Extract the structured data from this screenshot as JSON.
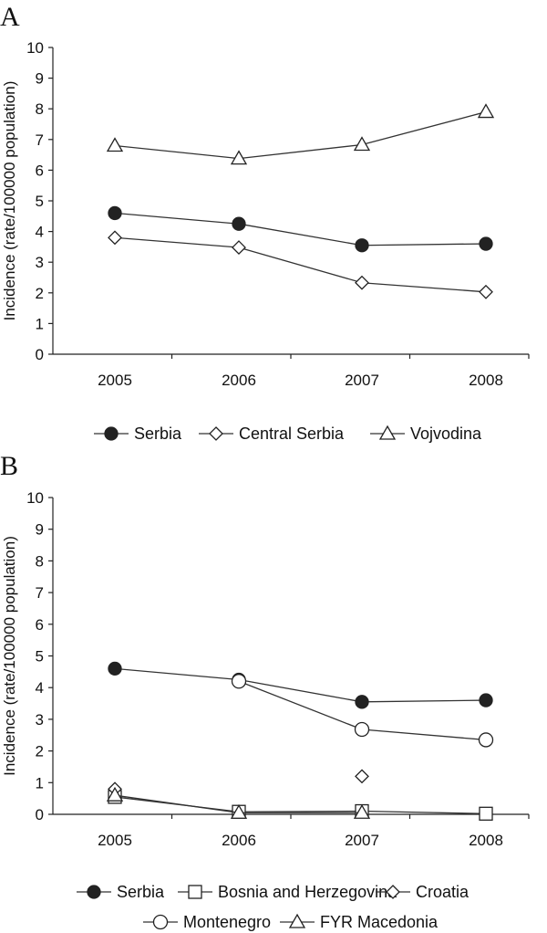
{
  "chart_data": [
    {
      "panel": "A",
      "type": "line",
      "categories": [
        "2005",
        "2006",
        "2007",
        "2008"
      ],
      "ylabel": "Incidence (rate/100000 population)",
      "xlabel": "",
      "ylim": [
        0,
        10
      ],
      "yticks": [
        "0",
        "1",
        "2",
        "3",
        "4",
        "5",
        "6",
        "7",
        "8",
        "9",
        "10"
      ],
      "series": [
        {
          "name": "Serbia",
          "marker": "filled-circle",
          "values": [
            4.6,
            4.25,
            3.55,
            3.6
          ]
        },
        {
          "name": "Central Serbia",
          "marker": "diamond",
          "values": [
            3.8,
            3.48,
            2.33,
            2.03
          ]
        },
        {
          "name": "Vojvodina",
          "marker": "triangle",
          "values": [
            6.8,
            6.38,
            6.83,
            7.9
          ]
        }
      ],
      "legend_rows": [
        [
          "Serbia",
          "Central Serbia",
          "Vojvodina"
        ]
      ],
      "legend_position": "bottom"
    },
    {
      "panel": "B",
      "type": "line",
      "categories": [
        "2005",
        "2006",
        "2007",
        "2008"
      ],
      "ylabel": "Incidence (rate/100000 population)",
      "xlabel": "",
      "ylim": [
        0,
        10
      ],
      "yticks": [
        "0",
        "1",
        "2",
        "3",
        "4",
        "5",
        "6",
        "7",
        "8",
        "9",
        "10"
      ],
      "series": [
        {
          "name": "Serbia",
          "marker": "filled-circle",
          "values": [
            4.6,
            4.25,
            3.55,
            3.6
          ]
        },
        {
          "name": "Bosnia and Herzegovina",
          "marker": "square",
          "values": [
            0.55,
            0.08,
            0.1,
            0.02
          ]
        },
        {
          "name": "Croatia",
          "marker": "diamond",
          "values": [
            0.8,
            null,
            1.2,
            null
          ]
        },
        {
          "name": "Montenegro",
          "marker": "circle",
          "values": [
            null,
            4.2,
            2.68,
            2.35
          ]
        },
        {
          "name": "FYR Macedonia",
          "marker": "triangle",
          "values": [
            0.6,
            0.05,
            0.05,
            null
          ]
        }
      ],
      "legend_rows": [
        [
          "Serbia",
          "Bosnia and Herzegovina",
          "Croatia"
        ],
        [
          "Montenegro",
          "FYR Macedonia"
        ]
      ],
      "legend_position": "bottom"
    }
  ]
}
